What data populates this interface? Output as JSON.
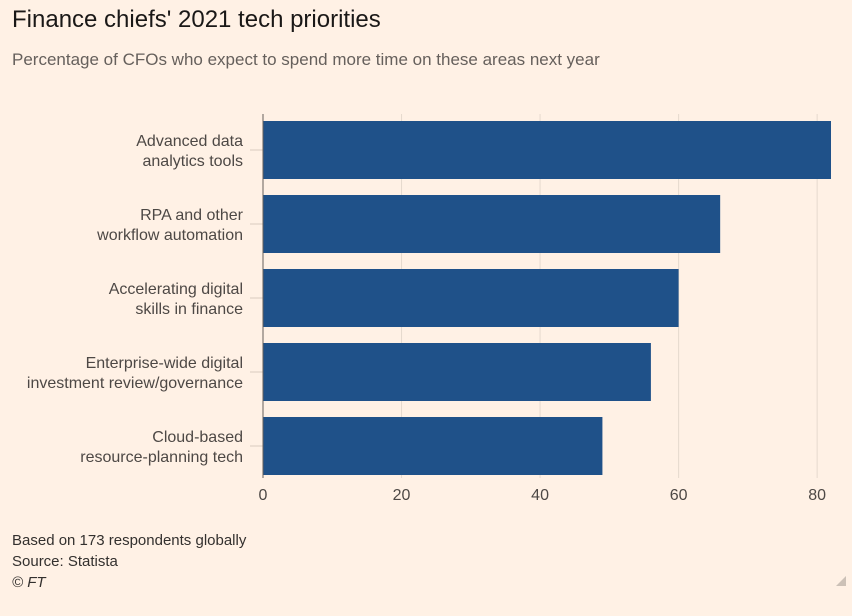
{
  "title": "Finance chiefs' 2021 tech priorities",
  "subtitle": "Percentage of CFOs who expect to spend more time on these areas next year",
  "chart_data": {
    "type": "bar",
    "orientation": "horizontal",
    "title": "Finance chiefs' 2021 tech priorities",
    "subtitle": "Percentage of CFOs who expect to spend more time on these areas next year",
    "categories": [
      [
        "Advanced data",
        "analytics tools"
      ],
      [
        "RPA and other",
        "workflow automation"
      ],
      [
        "Accelerating digital",
        "skills in finance"
      ],
      [
        "Enterprise-wide digital",
        "investment review/governance"
      ],
      [
        "Cloud-based",
        "resource-planning tech"
      ]
    ],
    "values": [
      82,
      66,
      60,
      56,
      49
    ],
    "xlim": [
      0,
      82
    ],
    "xticks": [
      0,
      20,
      40,
      60,
      80
    ],
    "xlabel": "",
    "ylabel": "",
    "grid": true,
    "bar_color": "#1f5189",
    "grid_color": "#e6d9ce"
  },
  "footer": {
    "note": "Based on 173 respondents globally",
    "source": "Source: Statista",
    "credit": "© FT"
  }
}
